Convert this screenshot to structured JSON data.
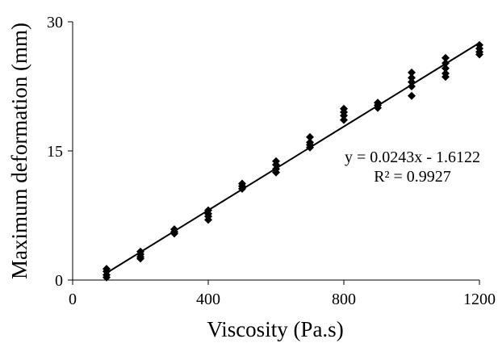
{
  "chart_data": {
    "type": "scatter",
    "title": "",
    "xlabel": "Viscosity (Pa.s)",
    "ylabel": "Maximum deformation (mm)",
    "xlim": [
      0,
      1200
    ],
    "ylim": [
      0,
      30
    ],
    "xticks": [
      "0",
      "400",
      "800",
      "1200"
    ],
    "yticks": [
      "0",
      "15",
      "30"
    ],
    "xtick_values": [
      0,
      400,
      800,
      1200
    ],
    "ytick_values": [
      0,
      15,
      30
    ],
    "grid": false,
    "marker": "diamond",
    "marker_color": "#000000",
    "line_color": "#000000",
    "series": [
      {
        "points": [
          [
            100,
            1.3
          ],
          [
            100,
            1.0
          ],
          [
            100,
            0.6
          ],
          [
            100,
            0.3
          ],
          [
            200,
            3.3
          ],
          [
            200,
            3.0
          ],
          [
            200,
            2.7
          ],
          [
            200,
            2.5
          ],
          [
            300,
            5.9
          ],
          [
            300,
            5.6
          ],
          [
            300,
            5.4
          ],
          [
            400,
            8.1
          ],
          [
            400,
            7.7
          ],
          [
            400,
            7.4
          ],
          [
            400,
            7.0
          ],
          [
            500,
            11.2
          ],
          [
            500,
            10.9
          ],
          [
            500,
            10.6
          ],
          [
            600,
            13.8
          ],
          [
            600,
            13.4
          ],
          [
            600,
            12.9
          ],
          [
            600,
            12.5
          ],
          [
            700,
            16.6
          ],
          [
            700,
            16.0
          ],
          [
            700,
            15.7
          ],
          [
            700,
            15.4
          ],
          [
            800,
            19.9
          ],
          [
            800,
            19.5
          ],
          [
            800,
            19.1
          ],
          [
            800,
            18.6
          ],
          [
            900,
            20.6
          ],
          [
            900,
            20.3
          ],
          [
            900,
            20.0
          ],
          [
            1000,
            24.1
          ],
          [
            1000,
            23.5
          ],
          [
            1000,
            23.0
          ],
          [
            1000,
            22.5
          ],
          [
            1000,
            21.4
          ],
          [
            1100,
            25.8
          ],
          [
            1100,
            25.2
          ],
          [
            1100,
            24.6
          ],
          [
            1100,
            24.0
          ],
          [
            1100,
            23.6
          ],
          [
            1200,
            27.3
          ],
          [
            1200,
            26.9
          ],
          [
            1200,
            26.5
          ],
          [
            1200,
            26.2
          ]
        ]
      }
    ],
    "trendline": {
      "slope": 0.0243,
      "intercept": -1.6122,
      "x_range": [
        100,
        1200
      ],
      "equation": "y = 0.0243x - 1.6122",
      "r_squared": "R² = 0.9927"
    }
  }
}
